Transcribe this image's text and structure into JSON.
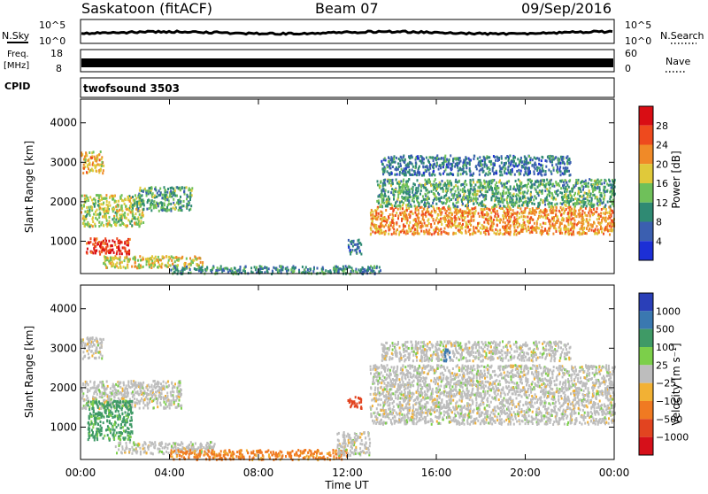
{
  "header": {
    "title": "Saskatoon (fitACF)",
    "beam": "Beam 07",
    "date": "09/Sep/2016"
  },
  "noise_panel": {
    "left_label": "N.Sky",
    "right_label": "N.Search",
    "ticks_left": [
      "10^5",
      "10^0"
    ],
    "ticks_right": [
      "10^5",
      "10^0"
    ]
  },
  "freq_panel": {
    "left_label_1": "Freq.",
    "left_label_2": "[MHz]",
    "right_label": "Nave",
    "ticks_left": [
      "18",
      "8"
    ],
    "ticks_right": [
      "60",
      "0"
    ]
  },
  "cpid_panel": {
    "label": "CPID",
    "value": "twofsound 3503"
  },
  "colorbars": {
    "power": {
      "label": "Power [dB]",
      "ticks": [
        "4",
        "8",
        "12",
        "16",
        "20",
        "24",
        "28"
      ],
      "colors": [
        "#1c2fd6",
        "#3b5fb0",
        "#2f8a73",
        "#6fc05a",
        "#e0c93a",
        "#f08a28",
        "#ee4a1e",
        "#d90d14"
      ]
    },
    "velocity": {
      "label": "Velocity [m s⁻¹]",
      "ticks": [
        "1000",
        "500",
        "100",
        "25",
        "−25",
        "−100",
        "−500",
        "−1000"
      ],
      "colors": [
        "#2a3fb8",
        "#3a78b0",
        "#3f9a66",
        "#7ccf4a",
        "#bdbdbd",
        "#f2b134",
        "#f07a22",
        "#e24420",
        "#d6101a"
      ]
    }
  },
  "chart_data": [
    {
      "type": "heatmap",
      "title": "Power",
      "ylabel": "Slant Range [km]",
      "xlabel": "Time UT",
      "x_ticks": [
        "00:00",
        "04:00",
        "08:00",
        "12:00",
        "16:00",
        "20:00",
        "00:00"
      ],
      "xlim_hours": [
        0,
        24
      ],
      "y_ticks": [
        "1000",
        "2000",
        "3000",
        "4000"
      ],
      "ylim": [
        180,
        4600
      ],
      "colorbar": "Power [dB]",
      "regions": [
        {
          "t0": 0.0,
          "t1": 1.0,
          "r0": 2750,
          "r1": 3300,
          "power": 20
        },
        {
          "t0": 0.0,
          "t1": 2.8,
          "r0": 1400,
          "r1": 2200,
          "power": 16
        },
        {
          "t0": 2.5,
          "t1": 5.0,
          "r0": 1800,
          "r1": 2400,
          "power": 12
        },
        {
          "t0": 0.2,
          "t1": 2.2,
          "r0": 700,
          "r1": 1100,
          "power": 28
        },
        {
          "t0": 1.0,
          "t1": 5.5,
          "r0": 350,
          "r1": 650,
          "power": 18
        },
        {
          "t0": 4.0,
          "t1": 13.5,
          "r0": 200,
          "r1": 400,
          "power": 10
        },
        {
          "t0": 13.0,
          "t1": 24.0,
          "r0": 1200,
          "r1": 1900,
          "power": 22
        },
        {
          "t0": 13.3,
          "t1": 24.0,
          "r0": 1900,
          "r1": 2600,
          "power": 12
        },
        {
          "t0": 13.5,
          "t1": 22.0,
          "r0": 2700,
          "r1": 3200,
          "power": 8
        },
        {
          "t0": 12.0,
          "t1": 12.6,
          "r0": 700,
          "r1": 1100,
          "power": 8
        }
      ]
    },
    {
      "type": "heatmap",
      "title": "Velocity",
      "ylabel": "Slant Range [km]",
      "xlabel": "Time UT",
      "x_ticks": [
        "00:00",
        "04:00",
        "08:00",
        "12:00",
        "16:00",
        "20:00",
        "00:00"
      ],
      "xlim_hours": [
        0,
        24
      ],
      "y_ticks": [
        "1000",
        "2000",
        "3000",
        "4000"
      ],
      "ylim": [
        180,
        4600
      ],
      "colorbar": "Velocity [m s⁻¹]",
      "regions": [
        {
          "t0": 0.0,
          "t1": 1.0,
          "r0": 2750,
          "r1": 3300,
          "velocity": 0
        },
        {
          "t0": 0.0,
          "t1": 4.5,
          "r0": 1500,
          "r1": 2200,
          "velocity": 0
        },
        {
          "t0": 0.3,
          "t1": 2.3,
          "r0": 700,
          "r1": 1700,
          "velocity": 80
        },
        {
          "t0": 1.5,
          "t1": 6.0,
          "r0": 350,
          "r1": 650,
          "velocity": 0
        },
        {
          "t0": 4.0,
          "t1": 12.0,
          "r0": 200,
          "r1": 450,
          "velocity": -80
        },
        {
          "t0": 11.5,
          "t1": 13.0,
          "r0": 300,
          "r1": 900,
          "velocity": 0
        },
        {
          "t0": 13.0,
          "t1": 24.0,
          "r0": 1100,
          "r1": 2600,
          "velocity": 0
        },
        {
          "t0": 13.5,
          "t1": 22.0,
          "r0": 2700,
          "r1": 3200,
          "velocity": 0
        },
        {
          "t0": 12.0,
          "t1": 12.6,
          "r0": 1500,
          "r1": 1800,
          "velocity": -700
        },
        {
          "t0": 16.3,
          "t1": 16.6,
          "r0": 2700,
          "r1": 3000,
          "velocity": 600
        }
      ]
    }
  ]
}
